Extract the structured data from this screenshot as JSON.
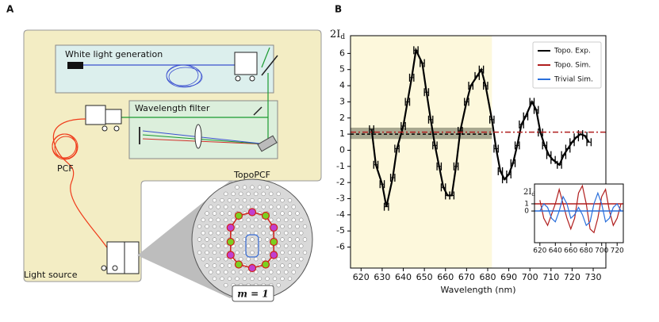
{
  "panels": {
    "a": "A",
    "b": "B"
  },
  "diagram": {
    "white_light": "White light generation",
    "filter": "Wavelength filter",
    "pcf": "PCF",
    "topopcf": "TopoPCF",
    "source": "Light source",
    "mode": "m = 1"
  },
  "chart_data": [
    {
      "type": "line",
      "ylabel": {
        "main": "2I",
        "sub": "d"
      },
      "xlabel": "Wavelength (nm)",
      "x": [
        625,
        627,
        630,
        632,
        635,
        637,
        640,
        642,
        644,
        646,
        649,
        651,
        653,
        655,
        657,
        659,
        661,
        663,
        665,
        667,
        670,
        672,
        675,
        677,
        679,
        682,
        684,
        686,
        688,
        690,
        692,
        694,
        696,
        698,
        701,
        703,
        705,
        707,
        709,
        711,
        714,
        716,
        718,
        720,
        722,
        724,
        726,
        728
      ],
      "series": [
        {
          "name": "Topo. Exp.",
          "color": "#000000",
          "xerr": 1,
          "values": [
            1.3,
            -0.9,
            -2.1,
            -3.5,
            -1.7,
            0.1,
            1.5,
            3.0,
            4.5,
            6.2,
            5.4,
            3.6,
            1.9,
            0.3,
            -1.0,
            -2.3,
            -2.8,
            -2.8,
            -1.0,
            1.2,
            3.0,
            4.0,
            4.6,
            5.0,
            4.0,
            1.9,
            0.1,
            -1.3,
            -1.8,
            -1.5,
            -0.8,
            0.3,
            1.6,
            2.1,
            3.0,
            2.5,
            1.1,
            0.3,
            -0.3,
            -0.6,
            -0.9,
            -0.3,
            0.1,
            0.5,
            0.8,
            1.0,
            0.9,
            0.5
          ]
        },
        {
          "name": "Topo. Sim.",
          "color": "#b01e1e",
          "level": 1.12
        },
        {
          "name": "Trivial Sim.",
          "color": "#2a6fdb"
        }
      ],
      "reference": {
        "value": 1.0,
        "color": "#000000",
        "x_end": 682,
        "band": [
          0.7,
          1.4
        ]
      },
      "shaded_x": [
        615,
        682
      ],
      "xlim": [
        615,
        736
      ],
      "ylim": [
        -7.3,
        7.1
      ],
      "xticks": [
        620,
        630,
        640,
        650,
        660,
        670,
        680,
        690,
        700,
        710,
        720,
        730
      ],
      "yticks": [
        -6,
        -5,
        -4,
        -3,
        -2,
        -1,
        0,
        1,
        2,
        3,
        4,
        5,
        6
      ],
      "legend": "upper right"
    },
    {
      "type": "line",
      "ylabel": {
        "main": "2I",
        "sub": "d"
      },
      "x": [
        620,
        625,
        630,
        635,
        640,
        645,
        650,
        655,
        660,
        665,
        670,
        675,
        680,
        685,
        690,
        695,
        700,
        705,
        710,
        715,
        720,
        725
      ],
      "series": [
        {
          "color": "#b01e1e",
          "level": 1,
          "values": [
            1.5,
            -1,
            -2,
            -0.5,
            1,
            3,
            1,
            -1,
            -2.5,
            -1,
            2.5,
            3.5,
            1,
            -2.5,
            -3,
            -1,
            2,
            3,
            0,
            -2,
            -1,
            1
          ]
        },
        {
          "color": "#2a6fdb",
          "level": 0,
          "values": [
            0,
            1,
            0.5,
            -1,
            -1.5,
            0,
            2,
            1,
            -1,
            -0.5,
            0.5,
            -0.5,
            -2,
            -1.5,
            1,
            2.5,
            1,
            -1.5,
            -1,
            0.5,
            1,
            0
          ]
        }
      ],
      "xlim": [
        613,
        728
      ],
      "ylim": [
        -4.4,
        3.75
      ],
      "xticks": [
        620,
        640,
        660,
        680,
        700,
        720
      ],
      "yticks": [
        0,
        1
      ]
    }
  ]
}
